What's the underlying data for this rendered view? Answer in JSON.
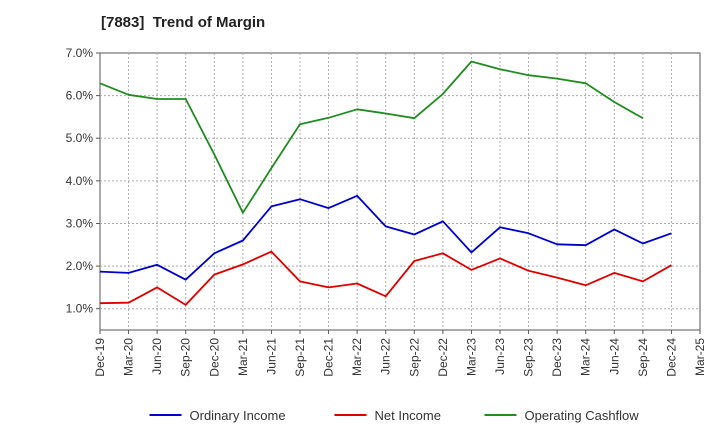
{
  "chart_data": {
    "type": "line",
    "title": "[7883]  Trend of Margin",
    "x_labels": [
      "Dec-19",
      "Mar-20",
      "Jun-20",
      "Sep-20",
      "Dec-20",
      "Mar-21",
      "Jun-21",
      "Sep-21",
      "Dec-21",
      "Mar-22",
      "Jun-22",
      "Sep-22",
      "Dec-22",
      "Mar-23",
      "Jun-23",
      "Sep-23",
      "Dec-23",
      "Mar-24",
      "Jun-24",
      "Sep-24",
      "Dec-24",
      "Mar-25"
    ],
    "y_ticks": [
      "1.0%",
      "2.0%",
      "3.0%",
      "4.0%",
      "5.0%",
      "6.0%",
      "7.0%"
    ],
    "ylim": [
      0.5,
      7.0
    ],
    "y_unit": "%",
    "grid": true,
    "legend_position": "bottom",
    "series": [
      {
        "name": "Ordinary Income",
        "color": "#0000cc",
        "values": [
          1.87,
          1.84,
          2.03,
          1.68,
          2.3,
          2.6,
          3.4,
          3.57,
          3.36,
          3.65,
          2.93,
          2.74,
          3.05,
          2.32,
          2.91,
          2.77,
          2.51,
          2.49,
          2.86,
          2.53,
          2.77,
          null
        ]
      },
      {
        "name": "Net Income",
        "color": "#dd0000",
        "values": [
          1.13,
          1.14,
          1.5,
          1.09,
          1.8,
          2.04,
          2.34,
          1.64,
          1.5,
          1.59,
          1.29,
          2.12,
          2.3,
          1.91,
          2.18,
          1.89,
          1.73,
          1.55,
          1.84,
          1.64,
          2.02,
          null
        ]
      },
      {
        "name": "Operating Cashflow",
        "color": "#228b22",
        "values": [
          6.29,
          6.02,
          5.92,
          5.92,
          4.62,
          3.25,
          4.3,
          5.33,
          5.48,
          5.68,
          5.58,
          5.47,
          6.04,
          6.8,
          6.62,
          6.48,
          6.4,
          6.29,
          5.85,
          5.47,
          null,
          null
        ]
      }
    ]
  }
}
